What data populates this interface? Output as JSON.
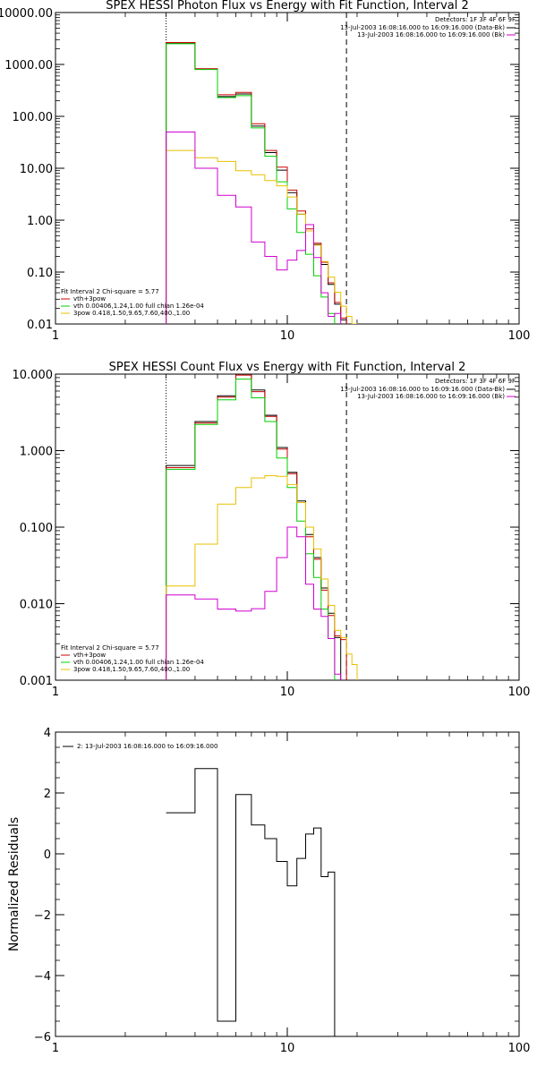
{
  "chart_data": [
    {
      "type": "line",
      "step": true,
      "title": "SPEX HESSI Photon Flux vs Energy with Fit Function, Interval 2",
      "xscale": "log",
      "yscale": "log",
      "xlim": [
        1,
        100
      ],
      "ylim": [
        0.01,
        10000
      ],
      "xticks": [
        "1",
        "10",
        "100"
      ],
      "yticks": [
        "0.01",
        "0.10",
        "1.00",
        "10.00",
        "100.00",
        "1000.00",
        "10000.00"
      ],
      "vlines": [
        {
          "x": 3,
          "style": "dotted"
        },
        {
          "x": 18,
          "style": "dashed"
        }
      ],
      "legend_top_right": {
        "detectors": "Detectors: 1F 3F 4F 6F 9F",
        "items": [
          {
            "label": "13-Jul-2003 16:08:16.000 to 16:09:16.000 (Data-Bk)",
            "color": "#000000"
          },
          {
            "label": "13-Jul-2003 16:08:16.000 to 16:09:16.000 (Bk)",
            "color": "#d000d0"
          }
        ]
      },
      "legend_bottom_left": {
        "header": "Fit Interval 2   Chi-square = 5.77",
        "items": [
          {
            "label": "vth+3pow",
            "color": "#cc0000"
          },
          {
            "label": "vth 0.00406,1.24,1.00  full chian 1.26e-04",
            "color": "#00d000"
          },
          {
            "label": "3pow 0.418,1.50,9.65,7.60,400.,1.00",
            "color": "#e8c000"
          }
        ]
      },
      "x_edges": [
        3,
        4,
        5,
        6,
        7,
        8,
        9,
        10,
        11,
        12,
        13,
        14,
        15,
        16,
        17,
        18,
        19,
        20,
        22
      ],
      "series": [
        {
          "name": "Data-Bk",
          "color": "#000000",
          "values": [
            2600,
            820,
            240,
            270,
            65,
            20,
            9.2,
            3.4,
            1.3,
            0.62,
            0.34,
            0.14,
            0.058,
            0.024,
            0.012,
            null,
            null,
            null
          ]
        },
        {
          "name": "vth+3pow",
          "color": "#cc0000",
          "values": [
            2650,
            830,
            260,
            290,
            72,
            22,
            10.5,
            3.8,
            1.5,
            0.68,
            0.36,
            0.155,
            0.062,
            0.026,
            0.013,
            null,
            null,
            null
          ]
        },
        {
          "name": "vth",
          "color": "#00d000",
          "values": [
            2500,
            800,
            230,
            250,
            60,
            17,
            5.5,
            1.65,
            0.58,
            0.22,
            0.085,
            0.033,
            0.016,
            null,
            null,
            null,
            null,
            null
          ]
        },
        {
          "name": "3pow",
          "color": "#e8c000",
          "values": [
            22,
            16,
            13.5,
            9,
            7.5,
            5.8,
            4.6,
            2.8,
            1.3,
            0.62,
            0.33,
            0.16,
            0.08,
            0.041,
            0.022,
            0.014,
            0.01,
            null
          ]
        },
        {
          "name": "Bk",
          "color": "#d000d0",
          "values": [
            50,
            10,
            3,
            1.8,
            0.38,
            0.2,
            0.11,
            0.17,
            0.26,
            0.82,
            0.19,
            0.04,
            0.014,
            0.016,
            null,
            null,
            null,
            null
          ]
        }
      ]
    },
    {
      "type": "line",
      "step": true,
      "title": "SPEX HESSI Count Flux vs Energy with Fit Function, Interval 2",
      "xscale": "log",
      "yscale": "log",
      "xlim": [
        1,
        100
      ],
      "ylim": [
        0.001,
        10
      ],
      "xticks": [
        "1",
        "10",
        "100"
      ],
      "yticks": [
        "0.001",
        "0.010",
        "0.100",
        "1.000",
        "10.000"
      ],
      "vlines": [
        {
          "x": 3,
          "style": "dotted"
        },
        {
          "x": 18,
          "style": "dashed"
        }
      ],
      "legend_top_right": {
        "detectors": "Detectors: 1F 3F 4F 6F 9F",
        "items": [
          {
            "label": "13-Jul-2003 16:08:16.000 to 16:09:16.000 (Data-Bk)",
            "color": "#000000"
          },
          {
            "label": "13-Jul-2003 16:08:16.000 to 16:09:16.000 (Bk)",
            "color": "#d000d0"
          }
        ]
      },
      "legend_bottom_left": {
        "header": "Fit Interval 2   Chi-square = 5.77",
        "items": [
          {
            "label": "vth+3pow",
            "color": "#cc0000"
          },
          {
            "label": "vth 0.00406,1.24,1.00  full chian 1.26e-04",
            "color": "#00d000"
          },
          {
            "label": "3pow 0.418,1.50,9.65,7.60,400.,1.00",
            "color": "#e8c000"
          }
        ]
      },
      "x_edges": [
        3,
        4,
        5,
        6,
        7,
        8,
        9,
        10,
        11,
        12,
        13,
        14,
        15,
        16,
        17,
        18,
        19,
        20,
        22
      ],
      "series": [
        {
          "name": "Data-Bk",
          "color": "#000000",
          "values": [
            0.64,
            2.4,
            5.2,
            10,
            6.2,
            2.9,
            1.1,
            0.52,
            0.22,
            0.08,
            0.04,
            0.016,
            0.0075,
            0.0036,
            null,
            null,
            null,
            null
          ]
        },
        {
          "name": "vth+3pow",
          "color": "#cc0000",
          "values": [
            0.6,
            2.3,
            5.0,
            9.7,
            5.9,
            2.8,
            1.05,
            0.5,
            0.21,
            0.075,
            0.038,
            0.015,
            0.007,
            0.0038,
            0.0034,
            null,
            null,
            null
          ]
        },
        {
          "name": "vth",
          "color": "#00d000",
          "values": [
            0.57,
            2.2,
            4.6,
            8.6,
            4.9,
            2.4,
            0.8,
            0.33,
            0.12,
            0.045,
            0.022,
            0.0085,
            0.0035,
            null,
            null,
            null,
            null,
            null
          ]
        },
        {
          "name": "3pow",
          "color": "#e8c000",
          "values": [
            0.017,
            0.06,
            0.2,
            0.33,
            0.44,
            0.47,
            0.46,
            0.36,
            0.21,
            0.1,
            0.052,
            0.021,
            0.0095,
            0.0045,
            0.0036,
            0.0022,
            0.0016,
            null
          ]
        },
        {
          "name": "Bk",
          "color": "#d000d0",
          "values": [
            0.013,
            0.0115,
            0.0085,
            0.008,
            0.0086,
            0.0145,
            0.04,
            0.1,
            0.075,
            0.018,
            0.0085,
            0.0068,
            0.0035,
            0.0012,
            null,
            null,
            null,
            null
          ]
        }
      ]
    },
    {
      "type": "line",
      "step": true,
      "title": "",
      "xscale": "log",
      "xlim": [
        1,
        100
      ],
      "ylim": [
        -6,
        4
      ],
      "xticks": [
        "1",
        "10",
        "100"
      ],
      "yticks": [
        "-6",
        "-4",
        "-2",
        "0",
        "2",
        "4"
      ],
      "ylabel": "Normalized Residuals",
      "legend_top_left": {
        "items": [
          {
            "label": "2: 13-Jul-2003 16:08:16.000 to 16:09:16.000",
            "color": "#000000"
          }
        ]
      },
      "x_edges": [
        3,
        4,
        5,
        6,
        7,
        8,
        9,
        10,
        11,
        12,
        13,
        14,
        15,
        16,
        17,
        18
      ],
      "series": [
        {
          "name": "residuals",
          "color": "#000000",
          "values": [
            1.35,
            2.8,
            -5.5,
            1.95,
            0.95,
            0.5,
            -0.25,
            -1.05,
            -0.15,
            0.65,
            0.85,
            -0.75,
            -0.6,
            null,
            null
          ]
        }
      ]
    }
  ]
}
